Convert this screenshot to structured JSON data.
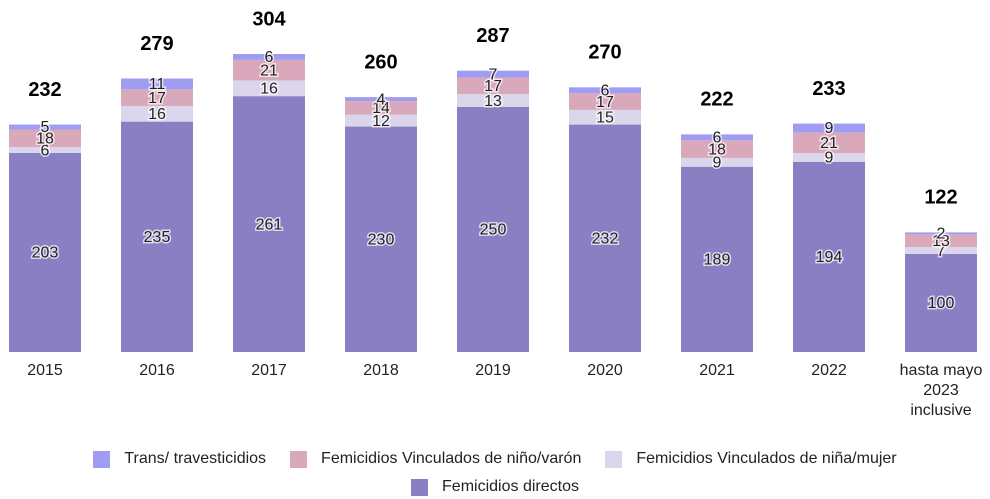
{
  "chart_data": {
    "type": "stacked-bar",
    "categories": [
      "2015",
      "2016",
      "2017",
      "2018",
      "2019",
      "2020",
      "2021",
      "2022",
      "hasta mayo 2023 inclusive"
    ],
    "series": [
      {
        "name": "Femicidios directos",
        "color": "#8b7fc4",
        "values": [
          203,
          235,
          261,
          230,
          250,
          232,
          189,
          194,
          100
        ]
      },
      {
        "name": "Femicidios Vinculados de niña/mujer",
        "color": "#dcd6ec",
        "values": [
          6,
          16,
          16,
          12,
          13,
          15,
          9,
          9,
          7
        ]
      },
      {
        "name": "Femicidios Vinculados de niño/varón",
        "color": "#d9a9bb",
        "values": [
          18,
          17,
          21,
          14,
          17,
          17,
          18,
          21,
          13
        ]
      },
      {
        "name": "Trans/ travesticidios",
        "color": "#a09cf2",
        "values": [
          5,
          11,
          6,
          4,
          7,
          6,
          6,
          9,
          2
        ]
      }
    ],
    "totals": [
      232,
      279,
      304,
      260,
      287,
      270,
      222,
      233,
      122
    ],
    "legend_order": [
      3,
      2,
      1,
      0
    ]
  }
}
